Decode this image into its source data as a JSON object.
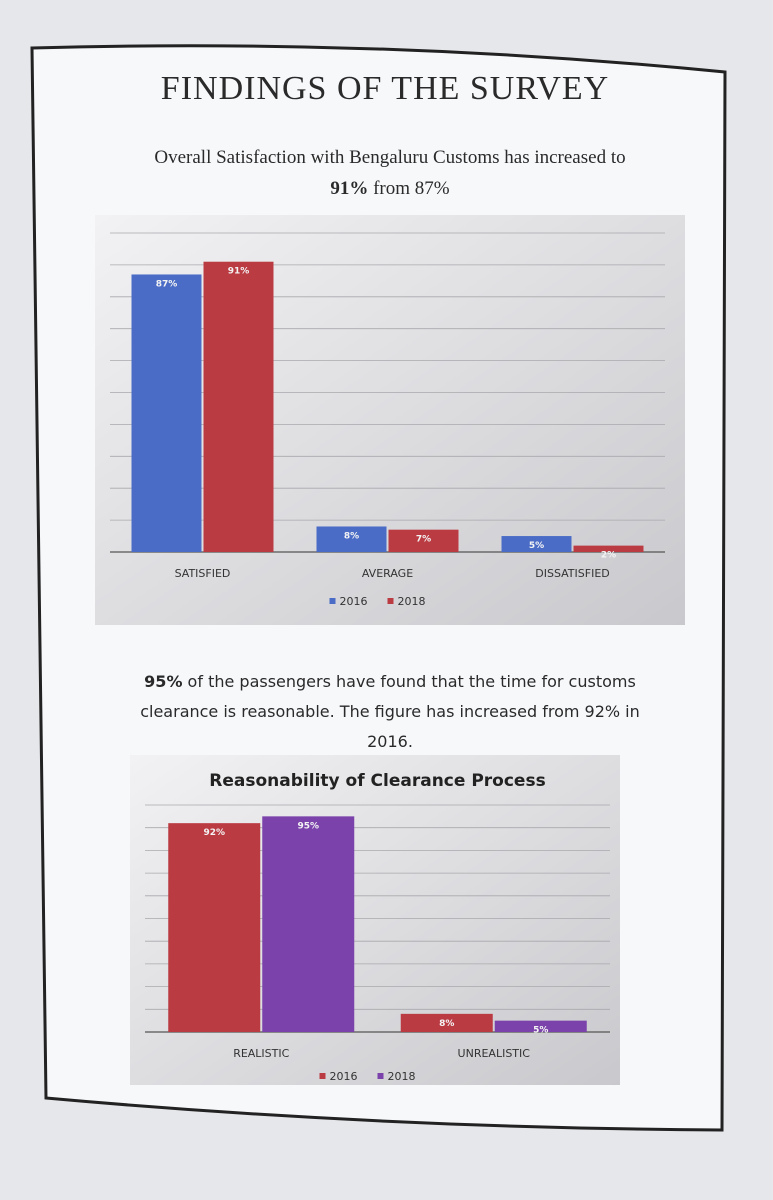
{
  "title": "FINDINGS OF THE SURVEY",
  "intro": [
    "Overall Satisfaction with Bengaluru Customs has increased to ",
    "91%",
    " from  87%"
  ],
  "note": [
    "95%",
    " of the passengers have found  that the time for customs clearance is reasonable. The figure has increased from 92% in 2016."
  ],
  "chart_data": [
    {
      "type": "bar",
      "categories": [
        "SATISFIED",
        "AVERAGE",
        "DISSATISFIED"
      ],
      "series": [
        {
          "name": "2016",
          "color": "#4a6cc6",
          "values": [
            87,
            8,
            5
          ],
          "value_labels": [
            "87%",
            "8%",
            "5%"
          ]
        },
        {
          "name": "2018",
          "color": "#bb3b43",
          "values": [
            91,
            7,
            2
          ],
          "value_labels": [
            "91%",
            "7%",
            "2%"
          ]
        }
      ],
      "ylim": [
        0,
        100
      ],
      "yticks": [
        0,
        10,
        20,
        30,
        40,
        50,
        60,
        70,
        80,
        90,
        100
      ],
      "show_tick_labels": false,
      "grid": true,
      "legend": "bottom"
    },
    {
      "type": "bar",
      "title": "Reasonability of Clearance Process",
      "categories": [
        "REALISTIC",
        "UNREALISTIC"
      ],
      "series": [
        {
          "name": "2016",
          "color": "#bb3b43",
          "values": [
            92,
            8
          ],
          "value_labels": [
            "92%",
            "8%"
          ]
        },
        {
          "name": "2018",
          "color": "#7b42ab",
          "values": [
            95,
            5
          ],
          "value_labels": [
            "95%",
            "5%"
          ]
        }
      ],
      "ylim": [
        0,
        100
      ],
      "yticks": [
        0,
        10,
        20,
        30,
        40,
        50,
        60,
        70,
        80,
        90,
        100
      ],
      "show_tick_labels": false,
      "grid": true,
      "legend": "bottom"
    }
  ]
}
